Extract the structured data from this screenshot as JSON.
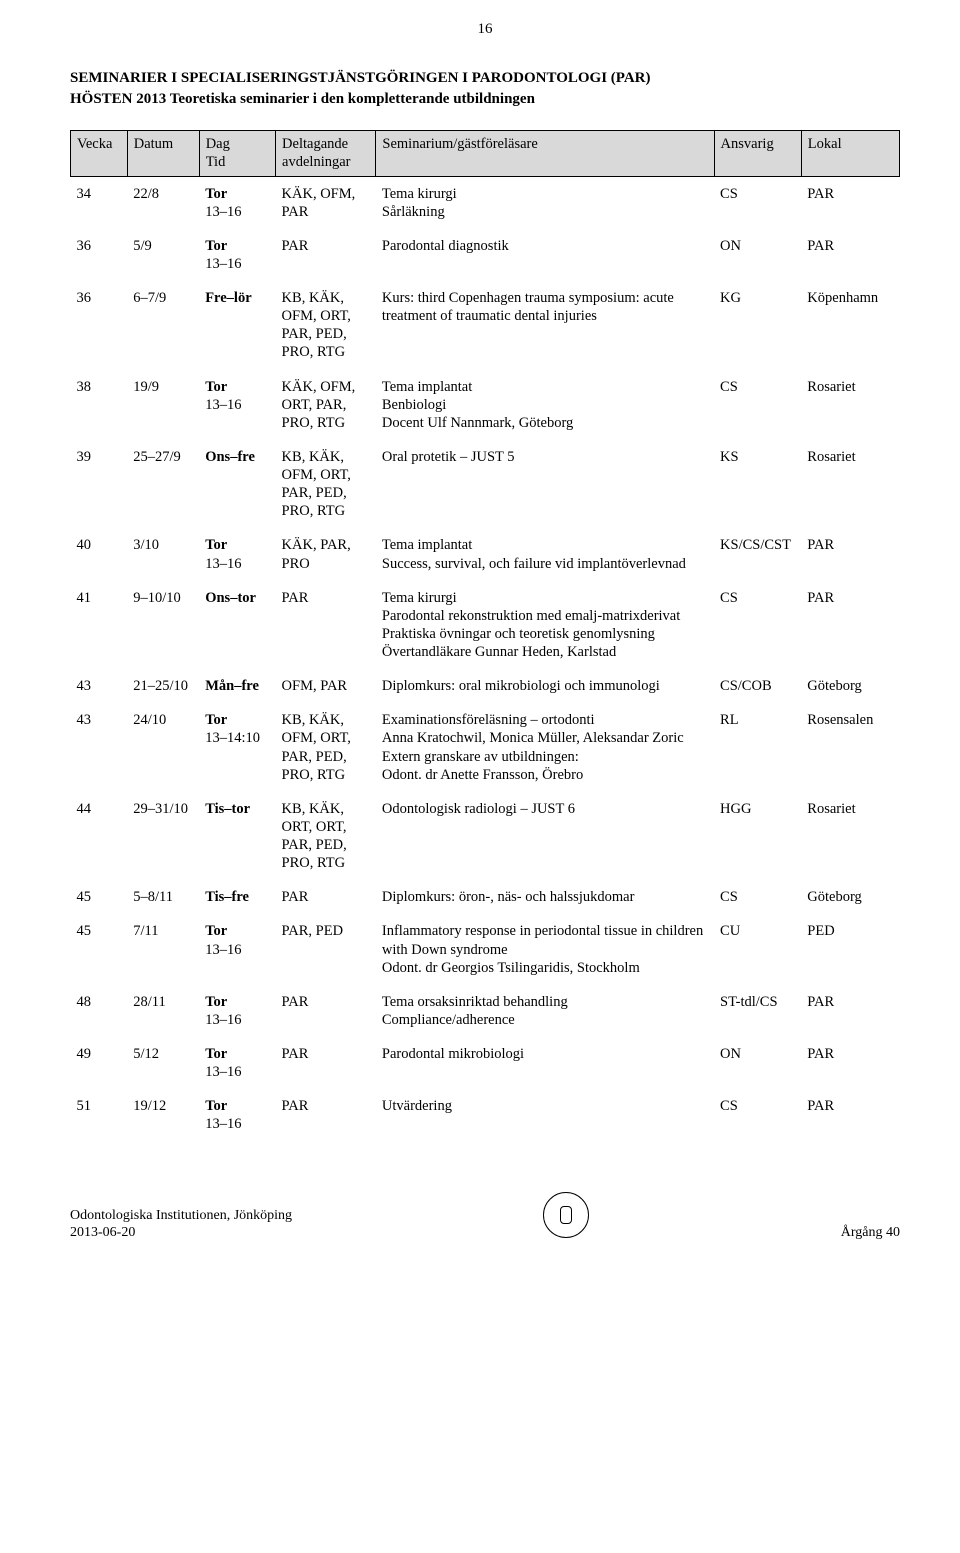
{
  "page_number": "16",
  "title": "SEMINARIER I SPECIALISERINGSTJÄNSTGÖRINGEN I PARODONTOLOGI (PAR)",
  "subtitle": "HÖSTEN 2013 Teoretiska seminarier i den kompletterande utbildningen",
  "columns": [
    "Vecka",
    "Datum",
    "Dag\nTid",
    "Deltagande\navdelningar",
    "Seminarium/gästföreläsare",
    "Ansvarig",
    "Lokal"
  ],
  "rows": [
    {
      "vecka": "34",
      "datum": "22/8",
      "dag": "Tor\n13–16",
      "dag_bold": true,
      "delt": "KÄK, OFM, PAR",
      "sem": "Tema kirurgi\nSårläkning",
      "ansv": "CS",
      "lokal": "PAR"
    },
    {
      "vecka": "36",
      "datum": "5/9",
      "dag": "Tor\n13–16",
      "dag_bold": true,
      "delt": "PAR",
      "sem": "Parodontal diagnostik",
      "ansv": "ON",
      "lokal": "PAR"
    },
    {
      "vecka": "36",
      "datum": "6–7/9",
      "dag": "Fre–lör",
      "dag_bold": true,
      "delt": "KB, KÄK, OFM, ORT, PAR, PED, PRO, RTG",
      "sem": "Kurs: third Copenhagen trauma symposium: acute treatment of traumatic dental injuries",
      "ansv": "KG",
      "lokal": "Köpenhamn"
    },
    {
      "vecka": "38",
      "datum": "19/9",
      "dag": "Tor\n13–16",
      "dag_bold": true,
      "delt": "KÄK, OFM, ORT, PAR, PRO, RTG",
      "sem": "Tema implantat\nBenbiologi\nDocent Ulf Nannmark, Göteborg",
      "ansv": "CS",
      "lokal": "Rosariet"
    },
    {
      "vecka": "39",
      "datum": "25–27/9",
      "dag": "Ons–fre",
      "dag_bold": true,
      "delt": "KB, KÄK, OFM, ORT, PAR, PED, PRO, RTG",
      "sem": "Oral protetik – JUST 5",
      "ansv": "KS",
      "lokal": "Rosariet"
    },
    {
      "vecka": "40",
      "datum": "3/10",
      "dag": "Tor\n13–16",
      "dag_bold": true,
      "delt": "KÄK, PAR, PRO",
      "sem": "Tema implantat\nSuccess, survival, och failure vid implantöverlevnad",
      "ansv": "KS/CS/CST",
      "lokal": "PAR"
    },
    {
      "vecka": "41",
      "datum": "9–10/10",
      "dag": "Ons–tor",
      "dag_bold": true,
      "delt": "PAR",
      "sem": "Tema kirurgi\nParodontal rekonstruktion med emalj-matrixderivat\nPraktiska övningar och teoretisk genomlysning\nÖvertandläkare Gunnar Heden, Karlstad",
      "ansv": "CS",
      "lokal": "PAR"
    },
    {
      "vecka": "43",
      "datum": "21–25/10",
      "dag": "Mån–fre",
      "dag_bold": true,
      "delt": "OFM, PAR",
      "sem": "Diplomkurs: oral mikrobiologi och immunologi",
      "ansv": "CS/COB",
      "lokal": "Göteborg"
    },
    {
      "vecka": "43",
      "datum": "24/10",
      "dag": "Tor\n13–14:10",
      "dag_bold": true,
      "delt": "KB, KÄK, OFM, ORT, PAR, PED, PRO, RTG",
      "sem": "Examinationsföreläsning – ortodonti\nAnna Kratochwil, Monica Müller, Aleksandar Zoric\nExtern granskare av utbildningen:\nOdont. dr Anette Fransson, Örebro",
      "ansv": "RL",
      "lokal": "Rosensalen"
    },
    {
      "vecka": "44",
      "datum": "29–31/10",
      "dag": "Tis–tor",
      "dag_bold": true,
      "delt": "KB, KÄK, ORT, ORT, PAR, PED, PRO, RTG",
      "sem": "Odontologisk radiologi – JUST 6",
      "ansv": "HGG",
      "lokal": "Rosariet"
    },
    {
      "vecka": "45",
      "datum": "5–8/11",
      "dag": "Tis–fre",
      "dag_bold": true,
      "delt": "PAR",
      "sem": "Diplomkurs: öron-, näs- och halssjukdomar",
      "ansv": "CS",
      "lokal": "Göteborg"
    },
    {
      "vecka": "45",
      "datum": "7/11",
      "dag": "Tor\n13–16",
      "dag_bold": true,
      "delt": "PAR, PED",
      "sem": "Inflammatory response in periodontal tissue in children with Down syndrome\nOdont. dr Georgios Tsilingaridis, Stockholm",
      "ansv": "CU",
      "lokal": "PED"
    },
    {
      "vecka": "48",
      "datum": "28/11",
      "dag": "Tor\n13–16",
      "dag_bold": true,
      "delt": "PAR",
      "sem": "Tema orsaksinriktad behandling\nCompliance/adherence",
      "ansv": "ST-tdl/CS",
      "lokal": "PAR"
    },
    {
      "vecka": "49",
      "datum": "5/12",
      "dag": "Tor\n13–16",
      "dag_bold": true,
      "delt": "PAR",
      "sem": "Parodontal mikrobiologi",
      "ansv": "ON",
      "lokal": "PAR"
    },
    {
      "vecka": "51",
      "datum": "19/12",
      "dag": "Tor\n13–16",
      "dag_bold": true,
      "delt": "PAR",
      "sem": "Utvärdering",
      "ansv": "CS",
      "lokal": "PAR"
    }
  ],
  "footer": {
    "left_line1": "Odontologiska Institutionen, Jönköping",
    "left_line2": "2013-06-20",
    "right": "Årgång 40"
  }
}
